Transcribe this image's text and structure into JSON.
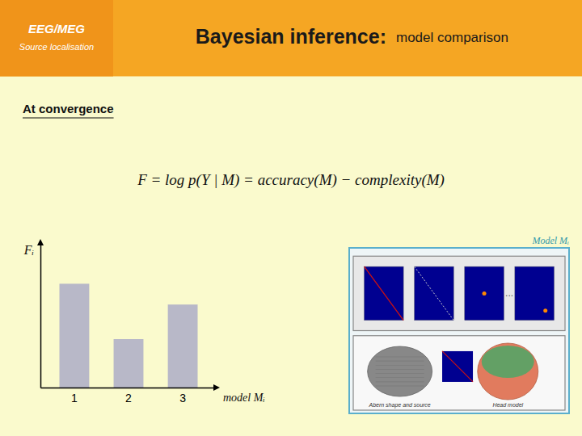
{
  "chart_data": {
    "type": "bar",
    "title": "Bayesian inference:",
    "subtitle": "model comparison",
    "annotations": [
      "EEG/MEG",
      "Source localisation",
      "At convergence",
      "F = log p(Y | M) = accuracy(M) − complexity(M)",
      "Model Mᵢ",
      "...",
      "Abern shape and source",
      "Head model"
    ],
    "xlabel": "model Mᵢ",
    "ylabel": "Fᵢ",
    "categories": [
      "1",
      "2",
      "3"
    ],
    "values": [
      0.75,
      0.35,
      0.6
    ],
    "color": "#B8B8C8",
    "ylim": [
      0,
      1.05
    ],
    "yticks": [],
    "tick_labels": "x"
  }
}
